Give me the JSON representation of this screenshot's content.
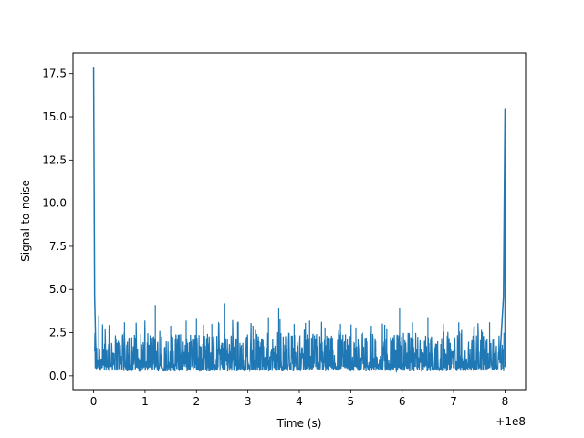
{
  "chart_data": {
    "type": "line",
    "title": "",
    "xlabel": "Time (s)",
    "ylabel": "Signal-to-noise",
    "x_offset_label": "+1e8",
    "xlim": [
      -0.4,
      8.4
    ],
    "ylim": [
      -0.8,
      18.7
    ],
    "xticks": [
      0,
      1,
      2,
      3,
      4,
      5,
      6,
      7,
      8
    ],
    "xtick_labels": [
      "0",
      "1",
      "2",
      "3",
      "4",
      "5",
      "6",
      "7",
      "8"
    ],
    "yticks": [
      0.0,
      2.5,
      5.0,
      7.5,
      10.0,
      12.5,
      15.0,
      17.5
    ],
    "ytick_labels": [
      "0.0",
      "2.5",
      "5.0",
      "7.5",
      "10.0",
      "12.5",
      "15.0",
      "17.5"
    ],
    "grid": false,
    "legend": "none",
    "series_color": "#1f77b4",
    "series": [
      {
        "x": [
          0,
          0.02,
          0.05,
          0.1,
          0.15,
          0.3,
          0.6,
          1.0,
          1.2,
          1.5,
          1.8,
          2.0,
          2.3,
          2.55,
          2.8,
          3.1,
          3.4,
          3.6,
          3.9,
          4.2,
          4.5,
          4.8,
          5.1,
          5.4,
          5.7,
          5.95,
          6.2,
          6.5,
          6.8,
          7.1,
          7.4,
          7.7,
          7.9,
          7.97,
          8.0
        ],
        "y": [
          17.9,
          4.6,
          0.6,
          3.5,
          1.0,
          2.7,
          3.1,
          2.8,
          4.1,
          2.9,
          3.2,
          3.3,
          3.0,
          4.2,
          3.1,
          2.9,
          3.4,
          3.9,
          3.0,
          3.2,
          2.8,
          3.0,
          2.8,
          2.9,
          2.7,
          3.9,
          3.1,
          3.4,
          3.0,
          3.1,
          2.9,
          3.1,
          2.6,
          4.6,
          15.5
        ]
      }
    ]
  }
}
